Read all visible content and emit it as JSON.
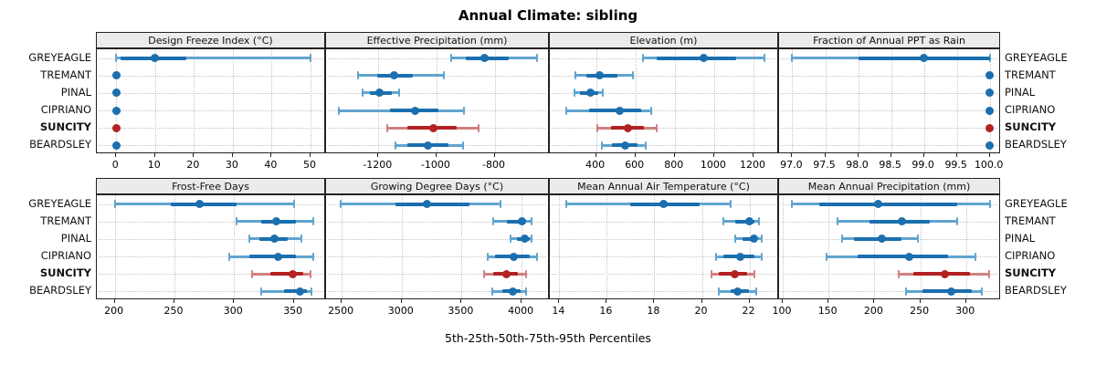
{
  "title": "Annual Climate: sibling",
  "footer": "5th-25th-50th-75th-95th Percentiles",
  "stations": [
    "GREYEAGLE",
    "TREMANT",
    "PINAL",
    "CIPRIANO",
    "SUNCITY",
    "BEARDSLEY"
  ],
  "highlight_station": "SUNCITY",
  "colors": {
    "blue_main": "#1b6fae",
    "blue_light": "#61a4cf",
    "red_main": "#b22222",
    "red_light": "#d07f7f",
    "strip_bg": "#ebebeb",
    "border": "#222222",
    "grid": "#c4c4c4"
  },
  "chart_data": {
    "type": "scatter",
    "subtype": "percentile-dotplot",
    "note": "Each row shows 5th-25th-50th-75th-95th percentiles: thin line 5-95, thick band 25-75, dot at median",
    "title": "Annual Climate: sibling",
    "xlabel": "5th-25th-50th-75th-95th Percentiles",
    "categories": [
      "GREYEAGLE",
      "TREMANT",
      "PINAL",
      "CIPRIANO",
      "SUNCITY",
      "BEARDSLEY"
    ],
    "panels": [
      {
        "title": "Design Freeze Index (°C)",
        "row": 0,
        "col": 0,
        "xlim": [
          -5,
          54
        ],
        "ticks": [
          0,
          10,
          20,
          30,
          40,
          50
        ],
        "tick_labels": [
          "0",
          "10",
          "20",
          "30",
          "40",
          "50"
        ],
        "values": [
          [
            0,
            1,
            10,
            18,
            50
          ],
          [
            0,
            0,
            0,
            0,
            0
          ],
          [
            0,
            0,
            0,
            0,
            0
          ],
          [
            0,
            0,
            0,
            0,
            0
          ],
          [
            0,
            0,
            0,
            0,
            0
          ],
          [
            0,
            0,
            0,
            0,
            0
          ]
        ]
      },
      {
        "title": "Effective Precipitation (mm)",
        "row": 0,
        "col": 1,
        "xlim": [
          -1380,
          -610
        ],
        "ticks": [
          -1200,
          -1000,
          -800
        ],
        "tick_labels": [
          "-1200",
          "-1000",
          "-800"
        ],
        "values": [
          [
            -950,
            -900,
            -835,
            -750,
            -655
          ],
          [
            -1270,
            -1205,
            -1145,
            -1080,
            -975
          ],
          [
            -1255,
            -1230,
            -1195,
            -1155,
            -1130
          ],
          [
            -1335,
            -1160,
            -1075,
            -995,
            -905
          ],
          [
            -1170,
            -1100,
            -1010,
            -930,
            -855
          ],
          [
            -1140,
            -1100,
            -1030,
            -960,
            -910
          ]
        ]
      },
      {
        "title": "Elevation (m)",
        "row": 0,
        "col": 2,
        "xlim": [
          165,
          1330
        ],
        "ticks": [
          400,
          600,
          800,
          1000,
          1200
        ],
        "tick_labels": [
          "400",
          "600",
          "800",
          "1000",
          "1200"
        ],
        "values": [
          [
            640,
            710,
            945,
            1110,
            1255
          ],
          [
            297,
            350,
            420,
            510,
            585
          ],
          [
            292,
            320,
            371,
            412,
            435
          ],
          [
            250,
            365,
            522,
            628,
            678
          ],
          [
            405,
            474,
            563,
            643,
            708
          ],
          [
            430,
            480,
            548,
            612,
            650
          ]
        ]
      },
      {
        "title": "Fraction of Annual PPT as Rain",
        "row": 0,
        "col": 3,
        "xlim": [
          96.8,
          100.17
        ],
        "ticks": [
          97.0,
          97.5,
          98.0,
          98.5,
          99.0,
          99.5,
          100.0
        ],
        "tick_labels": [
          "97.0",
          "97.5",
          "98.0",
          "98.5",
          "99.0",
          "99.5",
          "100.0"
        ],
        "values": [
          [
            97.0,
            98.0,
            99.0,
            100.0,
            100.0
          ],
          [
            100,
            100,
            100,
            100,
            100
          ],
          [
            100,
            100,
            100,
            100,
            100
          ],
          [
            100,
            100,
            100,
            100,
            100
          ],
          [
            100,
            100,
            100,
            100,
            100
          ],
          [
            100,
            100,
            100,
            100,
            100
          ]
        ]
      },
      {
        "title": "Frost-Free Days",
        "row": 1,
        "col": 0,
        "xlim": [
          185,
          377
        ],
        "ticks": [
          200,
          250,
          300,
          350
        ],
        "tick_labels": [
          "200",
          "250",
          "300",
          "350"
        ],
        "values": [
          [
            200,
            247,
            271,
            302,
            350
          ],
          [
            302,
            323,
            335,
            352,
            366
          ],
          [
            313,
            321,
            334,
            345,
            356
          ],
          [
            296,
            313,
            337,
            352,
            366
          ],
          [
            315,
            330,
            349,
            358,
            364
          ],
          [
            323,
            342,
            355,
            361,
            365
          ]
        ]
      },
      {
        "title": "Growing Degree Days (°C)",
        "row": 1,
        "col": 1,
        "xlim": [
          2370,
          4235
        ],
        "ticks": [
          2500,
          3000,
          3500,
          4000
        ],
        "tick_labels": [
          "2500",
          "3000",
          "3500",
          "4000"
        ],
        "values": [
          [
            2490,
            2945,
            3210,
            3565,
            3820
          ],
          [
            3765,
            3880,
            4000,
            4040,
            4085
          ],
          [
            3905,
            3960,
            4025,
            4070,
            4085
          ],
          [
            3715,
            3780,
            3935,
            4070,
            4125
          ],
          [
            3685,
            3765,
            3875,
            3965,
            4035
          ],
          [
            3755,
            3840,
            3930,
            3990,
            4040
          ]
        ]
      },
      {
        "title": "Mean Annual Air Temperature (°C)",
        "row": 1,
        "col": 2,
        "xlim": [
          13.6,
          23.25
        ],
        "ticks": [
          14,
          16,
          18,
          20,
          22
        ],
        "tick_labels": [
          "14",
          "16",
          "18",
          "20",
          "22"
        ],
        "values": [
          [
            14.3,
            17.0,
            18.4,
            19.9,
            21.2
          ],
          [
            20.9,
            21.4,
            22.0,
            22.2,
            22.4
          ],
          [
            21.4,
            21.7,
            22.2,
            22.3,
            22.5
          ],
          [
            20.6,
            20.9,
            21.6,
            22.2,
            22.5
          ],
          [
            20.4,
            20.7,
            21.4,
            21.9,
            22.2
          ],
          [
            20.7,
            21.2,
            21.5,
            22.0,
            22.3
          ]
        ]
      },
      {
        "title": "Mean Annual Precipitation (mm)",
        "row": 1,
        "col": 3,
        "xlim": [
          96,
          338
        ],
        "ticks": [
          100,
          150,
          200,
          250,
          300
        ],
        "tick_labels": [
          "100",
          "150",
          "200",
          "250",
          "300"
        ],
        "values": [
          [
            110,
            140,
            204,
            290,
            326
          ],
          [
            160,
            195,
            230,
            260,
            290
          ],
          [
            165,
            178,
            208,
            230,
            247
          ],
          [
            148,
            182,
            238,
            280,
            310
          ],
          [
            226,
            242,
            277,
            304,
            325
          ],
          [
            234,
            252,
            284,
            306,
            317
          ]
        ]
      }
    ]
  }
}
